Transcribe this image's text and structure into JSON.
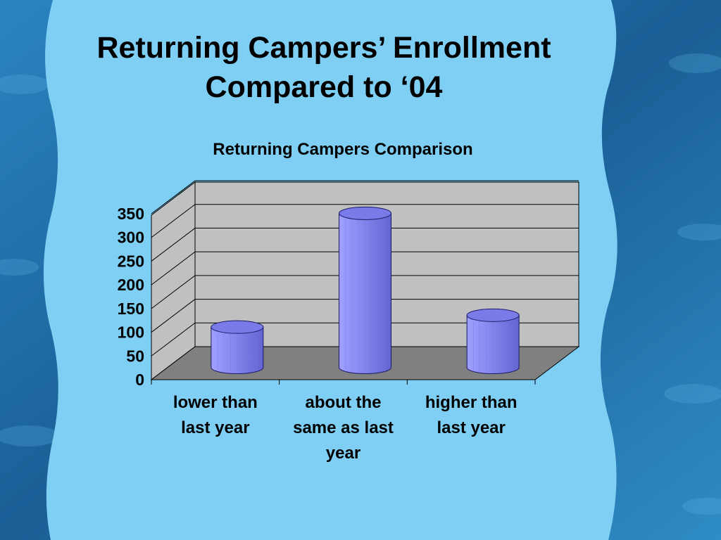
{
  "slide": {
    "title_line1": "Returning Campers’ Enrollment",
    "title_line2": "Compared to ‘04"
  },
  "colors": {
    "panel": "#7fcff5",
    "ocean": "#1f6fa8",
    "wall": "#c0c0c0",
    "floor": "#808080",
    "bar": "#8080ee"
  },
  "chart_data": {
    "type": "bar",
    "title": "Returning Campers Comparison",
    "categories": [
      [
        "lower than",
        "last year"
      ],
      [
        "about the",
        "same as last",
        "year"
      ],
      [
        "higher than",
        "last year"
      ]
    ],
    "values": [
      85,
      325,
      110
    ],
    "ylim": [
      0,
      350
    ],
    "yticks": [
      "0",
      "50",
      "100",
      "150",
      "200",
      "250",
      "300",
      "350"
    ],
    "grid": true,
    "style": "3d-cylinder"
  }
}
